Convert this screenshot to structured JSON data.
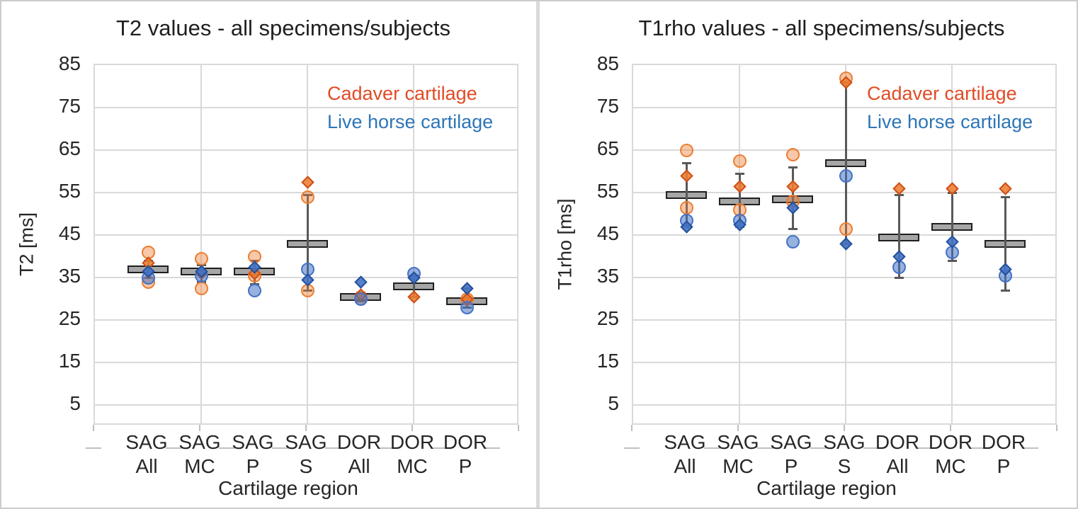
{
  "colors": {
    "gridline": "#d9d9d9",
    "plot_border": "#d9d9d9",
    "bar_fill": "#a6a6a6",
    "bar_border": "#1f1f1f",
    "whisker": "#595959",
    "text": "#262626",
    "cadaver_circle_border": "#ed7d31",
    "cadaver_circle_fill": "rgba(237,125,49,0.42)",
    "cadaver_diamond_border": "#ce4e17",
    "cadaver_diamond_fill": "rgba(237,125,49,0.88)",
    "live_circle_border": "#4472c4",
    "live_circle_fill": "rgba(68,114,196,0.55)",
    "live_diamond_border": "#24519b",
    "live_diamond_fill": "rgba(68,114,196,0.9)"
  },
  "chart_data": [
    {
      "type": "scatter",
      "title": "T2 values - all specimens/subjects",
      "ylabel": "T2 [ms]",
      "xlabel": "Cartilage region",
      "ylim": [
        0,
        85
      ],
      "y_ticks": [
        85,
        75,
        65,
        55,
        45,
        35,
        25,
        15,
        5
      ],
      "grid": true,
      "legend_position": "upper-right-inside",
      "legend": [
        {
          "label": "Cadaver cartilage",
          "color": "#e04b25",
          "series": "cadaver"
        },
        {
          "label": "Live horse cartilage",
          "color": "#2e75b6",
          "series": "live"
        }
      ],
      "categories": [
        "SAG All",
        "SAG MC",
        "SAG P",
        "SAG S",
        "DOR All",
        "DOR MC",
        "DOR P"
      ],
      "groups": [
        {
          "category": "SAG All",
          "mean": 37,
          "whisker": {
            "low": 35,
            "high": 39
          },
          "points": [
            {
              "series": "cadaver",
              "shape": "circle",
              "value": 41
            },
            {
              "series": "cadaver",
              "shape": "circle",
              "value": 34
            },
            {
              "series": "cadaver",
              "shape": "diamond",
              "value": 38.5
            },
            {
              "series": "live",
              "shape": "circle",
              "value": 35
            },
            {
              "series": "live",
              "shape": "diamond",
              "value": 36.5
            }
          ]
        },
        {
          "category": "SAG MC",
          "mean": 36.5,
          "whisker": {
            "low": 34,
            "high": 38
          },
          "points": [
            {
              "series": "cadaver",
              "shape": "circle",
              "value": 39.5
            },
            {
              "series": "cadaver",
              "shape": "circle",
              "value": 32.5
            },
            {
              "series": "cadaver",
              "shape": "diamond",
              "value": 36
            },
            {
              "series": "live",
              "shape": "circle",
              "value": 35.5
            },
            {
              "series": "live",
              "shape": "diamond",
              "value": 36.5
            }
          ]
        },
        {
          "category": "SAG P",
          "mean": 36.5,
          "whisker": {
            "low": 33.5,
            "high": 39
          },
          "points": [
            {
              "series": "cadaver",
              "shape": "circle",
              "value": 40
            },
            {
              "series": "cadaver",
              "shape": "circle",
              "value": 35.5
            },
            {
              "series": "cadaver",
              "shape": "diamond",
              "value": 36
            },
            {
              "series": "live",
              "shape": "circle",
              "value": 32
            },
            {
              "series": "live",
              "shape": "diamond",
              "value": 37.5
            }
          ]
        },
        {
          "category": "SAG S",
          "mean": 43,
          "whisker": {
            "low": 32,
            "high": 54.5
          },
          "points": [
            {
              "series": "cadaver",
              "shape": "circle",
              "value": 54
            },
            {
              "series": "cadaver",
              "shape": "circle",
              "value": 32
            },
            {
              "series": "cadaver",
              "shape": "diamond",
              "value": 57.5
            },
            {
              "series": "live",
              "shape": "circle",
              "value": 37
            },
            {
              "series": "live",
              "shape": "diamond",
              "value": 34.5
            }
          ]
        },
        {
          "category": "DOR All",
          "mean": 30.5,
          "whisker": {
            "low": 29.5,
            "high": 31.5
          },
          "points": [
            {
              "series": "cadaver",
              "shape": "circle",
              "value": 30
            },
            {
              "series": "cadaver",
              "shape": "diamond",
              "value": 31
            },
            {
              "series": "live",
              "shape": "circle",
              "value": 30
            },
            {
              "series": "live",
              "shape": "diamond",
              "value": 34
            }
          ]
        },
        {
          "category": "DOR MC",
          "mean": 33,
          "whisker": {
            "low": 30.5,
            "high": 35.5
          },
          "points": [
            {
              "series": "cadaver",
              "shape": "diamond",
              "value": 30.5
            },
            {
              "series": "live",
              "shape": "circle",
              "value": 36
            },
            {
              "series": "live",
              "shape": "diamond",
              "value": 35
            }
          ]
        },
        {
          "category": "DOR P",
          "mean": 29.5,
          "whisker": {
            "low": 28,
            "high": 32.5
          },
          "points": [
            {
              "series": "cadaver",
              "shape": "circle",
              "value": 30
            },
            {
              "series": "cadaver",
              "shape": "diamond",
              "value": 30
            },
            {
              "series": "live",
              "shape": "circle",
              "value": 28
            },
            {
              "series": "live",
              "shape": "diamond",
              "value": 32.5
            }
          ]
        }
      ]
    },
    {
      "type": "scatter",
      "title": "T1rho values - all specimens/subjects",
      "ylabel": "T1rho [ms]",
      "xlabel": "Cartilage region",
      "ylim": [
        0,
        85
      ],
      "y_ticks": [
        85,
        75,
        65,
        55,
        45,
        35,
        25,
        15,
        5
      ],
      "grid": true,
      "legend_position": "upper-right-inside",
      "legend": [
        {
          "label": "Cadaver cartilage",
          "color": "#e04b25",
          "series": "cadaver"
        },
        {
          "label": "Live horse cartilage",
          "color": "#2e75b6",
          "series": "live"
        }
      ],
      "categories": [
        "SAG All",
        "SAG MC",
        "SAG P",
        "SAG S",
        "DOR All",
        "DOR MC",
        "DOR P"
      ],
      "groups": [
        {
          "category": "SAG All",
          "mean": 54.5,
          "whisker": {
            "low": 47,
            "high": 62
          },
          "points": [
            {
              "series": "cadaver",
              "shape": "circle",
              "value": 65
            },
            {
              "series": "cadaver",
              "shape": "circle",
              "value": 51.5
            },
            {
              "series": "cadaver",
              "shape": "diamond",
              "value": 59
            },
            {
              "series": "live",
              "shape": "circle",
              "value": 48.5
            },
            {
              "series": "live",
              "shape": "diamond",
              "value": 47
            }
          ]
        },
        {
          "category": "SAG MC",
          "mean": 53,
          "whisker": {
            "low": 47,
            "high": 59.5
          },
          "points": [
            {
              "series": "cadaver",
              "shape": "circle",
              "value": 62.5
            },
            {
              "series": "cadaver",
              "shape": "circle",
              "value": 51
            },
            {
              "series": "cadaver",
              "shape": "diamond",
              "value": 56.5
            },
            {
              "series": "live",
              "shape": "circle",
              "value": 48.5
            },
            {
              "series": "live",
              "shape": "diamond",
              "value": 47.5
            }
          ]
        },
        {
          "category": "SAG P",
          "mean": 53.5,
          "whisker": {
            "low": 46.5,
            "high": 61
          },
          "points": [
            {
              "series": "cadaver",
              "shape": "circle",
              "value": 64
            },
            {
              "series": "cadaver",
              "shape": "circle",
              "value": 53
            },
            {
              "series": "cadaver",
              "shape": "diamond",
              "value": 56.5
            },
            {
              "series": "live",
              "shape": "circle",
              "value": 43.5
            },
            {
              "series": "live",
              "shape": "diamond",
              "value": 51.5
            }
          ]
        },
        {
          "category": "SAG S",
          "mean": 62,
          "whisker": {
            "low": 43,
            "high": 81
          },
          "points": [
            {
              "series": "cadaver",
              "shape": "circle",
              "value": 82
            },
            {
              "series": "cadaver",
              "shape": "circle",
              "value": 46.5
            },
            {
              "series": "cadaver",
              "shape": "diamond",
              "value": 81
            },
            {
              "series": "live",
              "shape": "circle",
              "value": 59
            },
            {
              "series": "live",
              "shape": "diamond",
              "value": 43
            }
          ]
        },
        {
          "category": "DOR All",
          "mean": 44.5,
          "whisker": {
            "low": 35,
            "high": 54.5
          },
          "points": [
            {
              "series": "cadaver",
              "shape": "diamond",
              "value": 56
            },
            {
              "series": "live",
              "shape": "circle",
              "value": 37.5
            },
            {
              "series": "live",
              "shape": "diamond",
              "value": 40
            }
          ]
        },
        {
          "category": "DOR MC",
          "mean": 47,
          "whisker": {
            "low": 39,
            "high": 55
          },
          "points": [
            {
              "series": "cadaver",
              "shape": "diamond",
              "value": 56
            },
            {
              "series": "live",
              "shape": "circle",
              "value": 41
            },
            {
              "series": "live",
              "shape": "diamond",
              "value": 43.5
            }
          ]
        },
        {
          "category": "DOR P",
          "mean": 43,
          "whisker": {
            "low": 32,
            "high": 54
          },
          "points": [
            {
              "series": "cadaver",
              "shape": "diamond",
              "value": 56
            },
            {
              "series": "live",
              "shape": "circle",
              "value": 35.5
            },
            {
              "series": "live",
              "shape": "diamond",
              "value": 37
            }
          ]
        }
      ]
    }
  ]
}
